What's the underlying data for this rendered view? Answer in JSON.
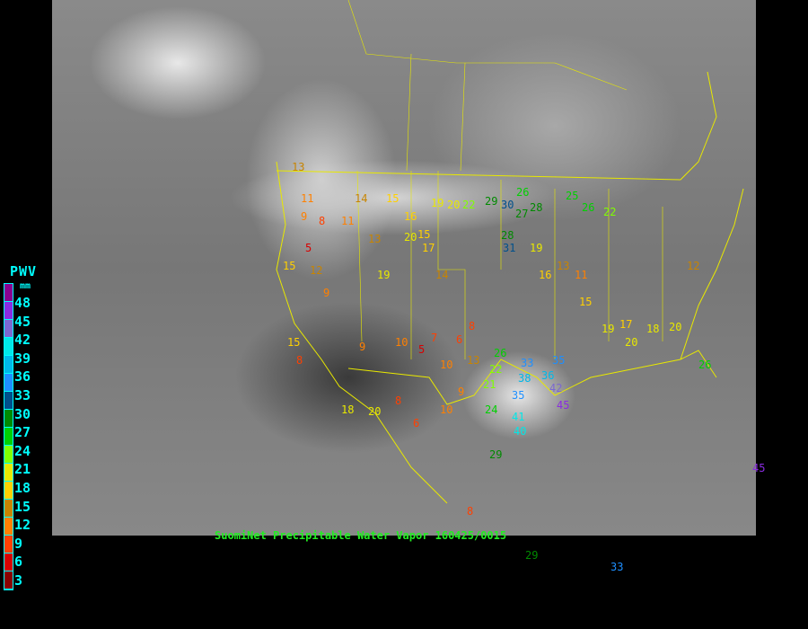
{
  "legend": {
    "title": "PWV",
    "unit": "mm",
    "labels": [
      "48",
      "45",
      "42",
      "39",
      "36",
      "33",
      "30",
      "27",
      "24",
      "21",
      "18",
      "15",
      "12",
      "9",
      "6",
      "3"
    ],
    "colors": [
      "#8a0090",
      "#8a2be2",
      "#7b68d0",
      "#00e8e8",
      "#00b8e8",
      "#1e8fff",
      "#00508c",
      "#008a00",
      "#00d000",
      "#80ff00",
      "#e8e800",
      "#ffd000",
      "#c88400",
      "#ff8000",
      "#ff4000",
      "#d80000",
      "#8a0000"
    ]
  },
  "caption": "SuomiNet Precipitable Water Vapor 160425/0015",
  "stations": [
    "13",
    "11",
    "9",
    "8",
    "5",
    "15",
    "12",
    "9",
    "11",
    "14",
    "15",
    "13",
    "16",
    "15",
    "19",
    "20",
    "22",
    "29",
    "30",
    "27",
    "28",
    "26",
    "25",
    "26",
    "22",
    "28",
    "31",
    "19",
    "16",
    "13",
    "11",
    "15",
    "8",
    "9",
    "10",
    "7",
    "6",
    "5",
    "8",
    "10",
    "13",
    "9",
    "8",
    "22",
    "21",
    "24",
    "26",
    "33",
    "35",
    "38",
    "36",
    "35",
    "41",
    "40",
    "29",
    "42",
    "45",
    "18",
    "20",
    "20",
    "17",
    "19",
    "14",
    "12",
    "15",
    "20",
    "19",
    "17",
    "18",
    "20",
    "26",
    "33",
    "29",
    "6",
    "8",
    "10",
    "45"
  ]
}
